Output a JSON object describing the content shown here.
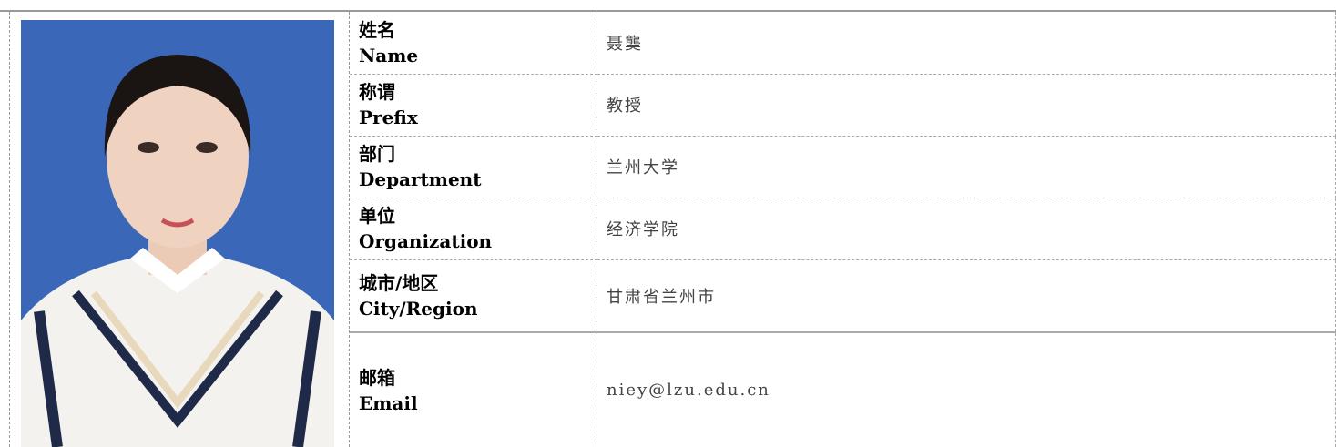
{
  "profile": {
    "rows": [
      {
        "label_cn": "姓名",
        "label_en": "Name",
        "value": "聂龑"
      },
      {
        "label_cn": "称谓",
        "label_en": "Prefix",
        "value": "教授"
      },
      {
        "label_cn": "部门",
        "label_en": "Department",
        "value": "兰州大学"
      },
      {
        "label_cn": "单位",
        "label_en": "Organization",
        "value": "经济学院"
      },
      {
        "label_cn": "城市/地区",
        "label_en": "City/Region",
        "value": "甘肃省兰州市"
      },
      {
        "label_cn": "邮箱",
        "label_en": "Email",
        "value": "niey@lzu.edu.cn"
      }
    ]
  }
}
